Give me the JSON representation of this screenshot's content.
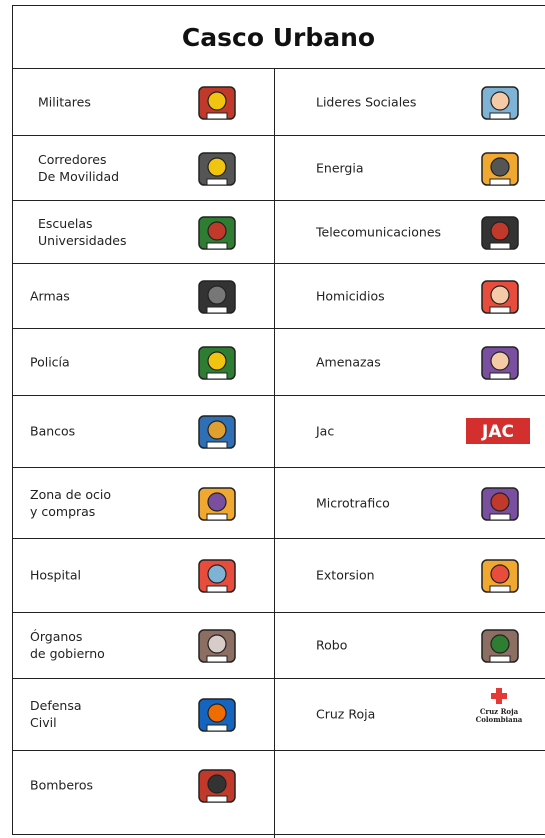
{
  "title": "Casco Urbano",
  "rows": [
    {
      "left": "Militares",
      "right": "Lideres Sociales"
    },
    {
      "left": "Corredores\nDe Movilidad",
      "right": "Energia"
    },
    {
      "left": "Escuelas\nUniversidades",
      "right": "Telecomunicaciones"
    },
    {
      "left": "Armas",
      "right": "Homicidios"
    },
    {
      "left": "Policía",
      "right": "Amenazas"
    },
    {
      "left": "Bancos",
      "right": "Jac"
    },
    {
      "left": "Zona de ocio\ny compras",
      "right": "Microtrafico"
    },
    {
      "left": "Hospital",
      "right": "Extorsion"
    },
    {
      "left": "Órganos\nde gobierno",
      "right": "Robo"
    },
    {
      "left": "Defensa\nCivil",
      "right": "Cruz Roja"
    },
    {
      "left": "Bomberos"
    }
  ],
  "icon_texts": {
    "jac": "JAC",
    "cruz_roja": "Cruz Roja\nColombiana"
  }
}
